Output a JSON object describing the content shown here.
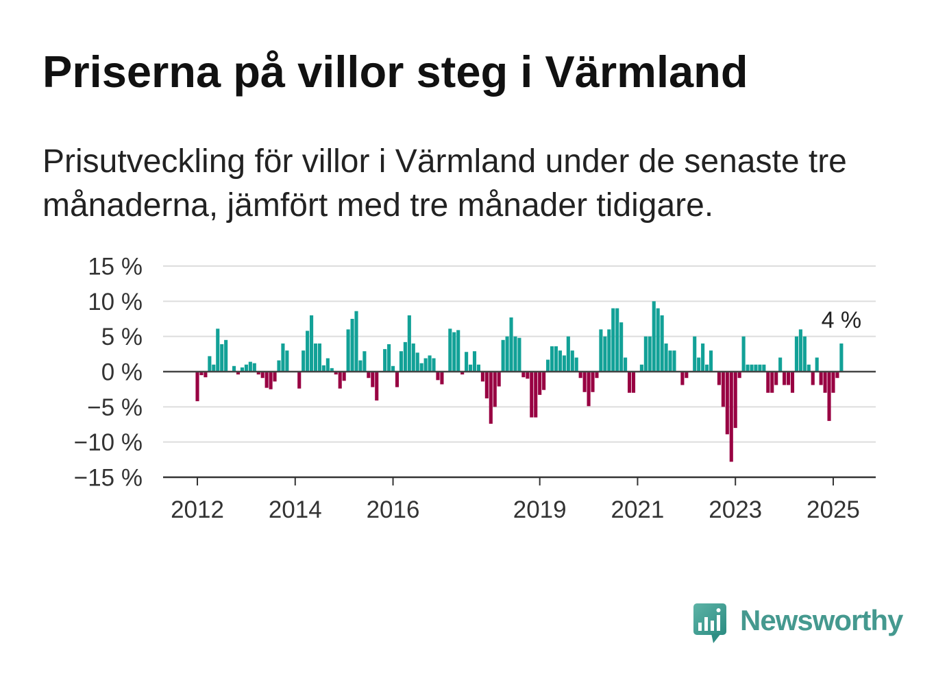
{
  "chart_data": {
    "type": "bar",
    "title": "Priserna på villor steg i Värmland",
    "subtitle": "Prisutveckling för villor i Värmland under de senaste tre månaderna, jämfört med tre månader tidigare.",
    "x": [
      "2012-01",
      "2012-02",
      "2012-03",
      "2012-04",
      "2012-05",
      "2012-06",
      "2012-07",
      "2012-08",
      "2012-09",
      "2012-10",
      "2012-11",
      "2012-12",
      "2013-01",
      "2013-02",
      "2013-03",
      "2013-04",
      "2013-05",
      "2013-06",
      "2013-07",
      "2013-08",
      "2013-09",
      "2013-10",
      "2013-11",
      "2013-12",
      "2014-01",
      "2014-02",
      "2014-03",
      "2014-04",
      "2014-05",
      "2014-06",
      "2014-07",
      "2014-08",
      "2014-09",
      "2014-10",
      "2014-11",
      "2014-12",
      "2015-01",
      "2015-02",
      "2015-03",
      "2015-04",
      "2015-05",
      "2015-06",
      "2015-07",
      "2015-08",
      "2015-09",
      "2015-10",
      "2015-11",
      "2015-12",
      "2016-01",
      "2016-02",
      "2016-03",
      "2016-04",
      "2016-05",
      "2016-06",
      "2016-07",
      "2016-08",
      "2016-09",
      "2016-10",
      "2016-11",
      "2016-12",
      "2017-01",
      "2017-02",
      "2017-03",
      "2017-04",
      "2017-05",
      "2017-06",
      "2017-07",
      "2017-08",
      "2017-09",
      "2017-10",
      "2017-11",
      "2017-12",
      "2018-01",
      "2018-02",
      "2018-03",
      "2018-04",
      "2018-05",
      "2018-06",
      "2018-07",
      "2018-08",
      "2018-09",
      "2018-10",
      "2018-11",
      "2018-12",
      "2019-01",
      "2019-02",
      "2019-03",
      "2019-04",
      "2019-05",
      "2019-06",
      "2019-07",
      "2019-08",
      "2019-09",
      "2019-10",
      "2019-11",
      "2019-12",
      "2020-01",
      "2020-02",
      "2020-03",
      "2020-04",
      "2020-05",
      "2020-06",
      "2020-07",
      "2020-08",
      "2020-09",
      "2020-10",
      "2020-11",
      "2020-12",
      "2021-01",
      "2021-02",
      "2021-03",
      "2021-04",
      "2021-05",
      "2021-06",
      "2021-07",
      "2021-08",
      "2021-09",
      "2021-10",
      "2021-11",
      "2021-12",
      "2022-01",
      "2022-02",
      "2022-03",
      "2022-04",
      "2022-05",
      "2022-06",
      "2022-07",
      "2022-08",
      "2022-09",
      "2022-10",
      "2022-11",
      "2022-12",
      "2023-01",
      "2023-02",
      "2023-03",
      "2023-04",
      "2023-05",
      "2023-06",
      "2023-07",
      "2023-08",
      "2023-09",
      "2023-10",
      "2023-11",
      "2023-12",
      "2024-01",
      "2024-02",
      "2024-03",
      "2024-04",
      "2024-05",
      "2024-06",
      "2024-07",
      "2024-08",
      "2024-09",
      "2024-10",
      "2024-11",
      "2024-12",
      "2025-01",
      "2025-02",
      "2025-03"
    ],
    "series": [
      {
        "values": [
          -4.2,
          -0.5,
          -0.8,
          2.2,
          1.0,
          6.1,
          3.9,
          4.5,
          0,
          0.8,
          -0.4,
          0.6,
          1.0,
          1.4,
          1.2,
          -0.4,
          -0.9,
          -2.3,
          -2.5,
          -1.4,
          1.6,
          4.0,
          3.0,
          0,
          0,
          -2.4,
          3.0,
          5.8,
          8.0,
          4.0,
          4.0,
          0.9,
          1.9,
          0.5,
          -0.4,
          -2.4,
          -1.3,
          6.0,
          7.5,
          8.6,
          1.6,
          2.9,
          -0.9,
          -2.2,
          -4.1,
          0,
          3.2,
          3.9,
          0.8,
          -2.2,
          2.9,
          4.2,
          8.0,
          4.0,
          2.7,
          1.2,
          1.9,
          2.3,
          1.9,
          -1.2,
          -1.8,
          0,
          6.1,
          5.6,
          5.9,
          -0.4,
          2.8,
          1.0,
          2.9,
          1.0,
          -1.4,
          -3.8,
          -7.4,
          -5.0,
          -2.1,
          4.5,
          5.0,
          7.7,
          5.0,
          4.8,
          -0.8,
          -1.0,
          -6.5,
          -6.5,
          -3.3,
          -2.6,
          1.7,
          3.6,
          3.6,
          3.0,
          2.3,
          5.0,
          3.0,
          2.0,
          -0.9,
          -2.9,
          -4.9,
          -2.9,
          -0.9,
          6.0,
          5.0,
          6.0,
          9.0,
          9.0,
          7.0,
          2.0,
          -3.0,
          -3.0,
          0,
          1.0,
          5.0,
          5.0,
          10.0,
          9.0,
          8.0,
          4.0,
          3.0,
          3.0,
          0,
          -1.9,
          -0.9,
          0,
          5.0,
          2.0,
          4.0,
          1.0,
          3.0,
          0,
          -1.9,
          -5.0,
          -8.9,
          -12.8,
          -8.0,
          -0.9,
          5.0,
          1.0,
          1.0,
          1.0,
          1.0,
          1.0,
          -3.0,
          -3.0,
          -1.9,
          2.0,
          -1.9,
          -1.9,
          -3.0,
          5.0,
          6.0,
          5.0,
          1.0,
          -1.9,
          2.0,
          -1.9,
          -3.0,
          -7.0,
          -3.0,
          -0.9,
          4.0
        ]
      }
    ],
    "xlim": [
      "2011-04-19",
      "2025-11-14"
    ],
    "ylim": [
      -15,
      15
    ],
    "xticks": [
      "2012",
      "2014",
      "2016",
      "2019",
      "2021",
      "2023",
      "2025"
    ],
    "yticks": [
      15,
      10,
      5,
      0,
      -5,
      -10,
      -15
    ],
    "ytick_labels": [
      "15 %",
      "10 %",
      "5 %",
      "0 %",
      "−5 %",
      "−10 %",
      "−15 %"
    ],
    "annotations": [
      {
        "x": "2025-03",
        "y": 4,
        "text": "4 %"
      }
    ],
    "grid": true,
    "legend": "none",
    "colors": {
      "positive": "#12a197",
      "negative": "#980042",
      "gridline": "#dddddd",
      "axis": "#333333"
    }
  },
  "brand": {
    "name": "Newsworthy",
    "icon": "newsworthy-logo-icon",
    "color": "#45998f"
  }
}
